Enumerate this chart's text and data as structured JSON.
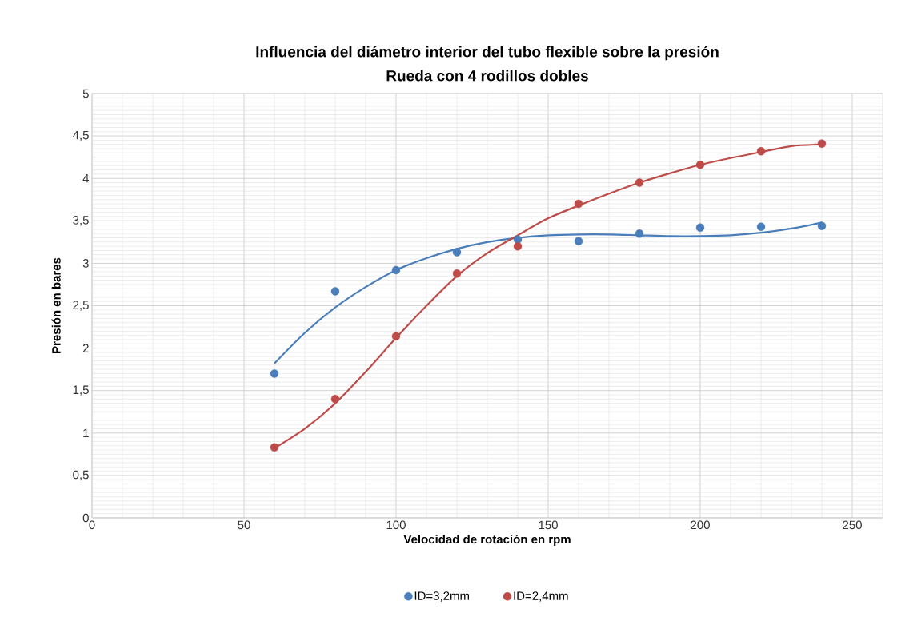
{
  "chart_data": {
    "type": "scatter",
    "title": "Influencia del diámetro interior del tubo flexible sobre la presión",
    "subtitle": "Rueda con 4 rodillos dobles",
    "xlabel": "Velocidad de rotación en rpm",
    "ylabel": "Presión en bares",
    "xlim": [
      0,
      260
    ],
    "xticks": [
      0,
      50,
      100,
      150,
      200,
      250
    ],
    "ylim": [
      0,
      5
    ],
    "yticks": [
      0,
      {
        "value": 0.5,
        "label": "0,5"
      },
      1,
      {
        "value": 1.5,
        "label": "1,5"
      },
      2,
      {
        "value": 2.5,
        "label": "2,5"
      },
      3,
      {
        "value": 3.5,
        "label": "3,5"
      },
      4,
      {
        "value": 4.5,
        "label": "4,5"
      },
      5
    ],
    "grid": true,
    "legend": "bottom",
    "marker": "circle",
    "series": [
      {
        "name": "ID=3,2mm",
        "color": "#4a7ebb",
        "x": [
          60,
          80,
          100,
          120,
          140,
          160,
          180,
          200,
          220,
          240
        ],
        "values": [
          1.7,
          2.67,
          2.92,
          3.13,
          3.28,
          3.26,
          3.35,
          3.42,
          3.43,
          3.44
        ]
      },
      {
        "name": "ID=2,4mm",
        "color": "#be4b48",
        "x": [
          60,
          80,
          100,
          120,
          140,
          160,
          180,
          200,
          220,
          240
        ],
        "values": [
          0.83,
          1.4,
          2.14,
          2.88,
          3.2,
          3.7,
          3.95,
          4.16,
          4.32,
          4.41
        ]
      },
      {
        "type": "line",
        "marker": "none",
        "color": "#4a7ebb",
        "x": [
          60,
          70,
          80,
          90,
          100,
          110,
          120,
          130,
          140,
          150,
          160,
          170,
          180,
          190,
          200,
          210,
          220,
          230,
          240
        ],
        "values": [
          1.82,
          2.18,
          2.48,
          2.72,
          2.92,
          3.06,
          3.17,
          3.25,
          3.3,
          3.33,
          3.34,
          3.34,
          3.33,
          3.32,
          3.32,
          3.33,
          3.36,
          3.41,
          3.48
        ]
      },
      {
        "type": "line",
        "marker": "none",
        "color": "#be4b48",
        "x": [
          60,
          70,
          80,
          90,
          100,
          110,
          120,
          130,
          140,
          150,
          160,
          170,
          180,
          190,
          200,
          210,
          220,
          230,
          240
        ],
        "values": [
          0.82,
          1.05,
          1.35,
          1.72,
          2.12,
          2.5,
          2.85,
          3.12,
          3.33,
          3.53,
          3.68,
          3.82,
          3.95,
          4.06,
          4.16,
          4.24,
          4.31,
          4.38,
          4.4
        ]
      }
    ]
  }
}
